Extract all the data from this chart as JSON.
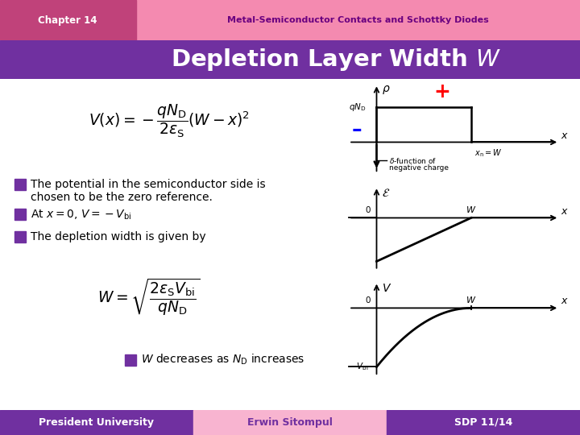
{
  "chapter_label": "Chapter 14",
  "chapter_topic": "Metal-Semiconductor Contacts and Schottky Diodes",
  "header_bg": "#c0427a",
  "header_topic_bg": "#f48ab0",
  "title_bg": "#7030a0",
  "main_bg": "#ffffff",
  "footer_left_bg": "#7030a0",
  "footer_mid_bg": "#f8b4d0",
  "footer_right_bg": "#7030a0",
  "footer_left_text": "President University",
  "footer_mid_text": "Erwin Sitompul",
  "footer_right_text": "SDP 11/14",
  "bullet_color": "#7030a0",
  "plus_color": "#ff0000",
  "minus_color": "#0000cc"
}
